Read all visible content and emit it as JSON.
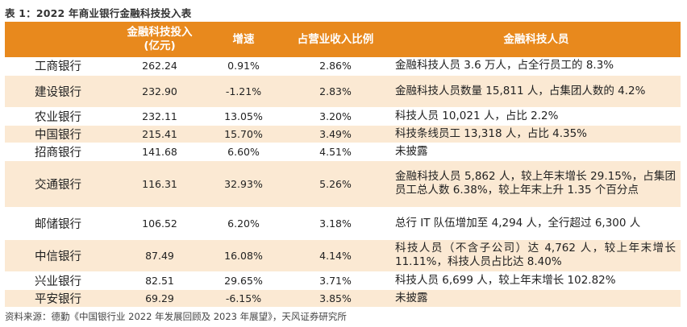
{
  "title": "表 1：2022 年商业银行金融科技投入表",
  "headers": [
    "",
    "金融科技投入\n(亿元)",
    "增速",
    "占营业收入比例",
    "金融科技人员"
  ],
  "rows": [
    {
      "bank": "工商银行",
      "investment": "262.24",
      "growth": "0.91%",
      "ratio": "2.86%",
      "staff": "金融科技人员 3.6 万人，占全行员工的 8.3%"
    },
    {
      "bank": "建设银行",
      "investment": "232.90",
      "growth": "-1.21%",
      "ratio": "2.83%",
      "staff": "金融科技人员数量 15,811 人，占集团人数的 4.2%"
    },
    {
      "bank": "农业银行",
      "investment": "232.11",
      "growth": "13.05%",
      "ratio": "3.20%",
      "staff": "科技人员 10,021 人，占比 2.2%"
    },
    {
      "bank": "中国银行",
      "investment": "215.41",
      "growth": "15.70%",
      "ratio": "3.49%",
      "staff": "科技条线员工 13,318 人，占比 4.35%"
    },
    {
      "bank": "招商银行",
      "investment": "141.68",
      "growth": "6.60%",
      "ratio": "4.51%",
      "staff": "未披露"
    },
    {
      "bank": "交通银行",
      "investment": "116.31",
      "growth": "32.93%",
      "ratio": "5.26%",
      "staff": "金融科技人员 5,862 人，较上年末增长 29.15%，占集团员工总人数 6.38%，较上年末上升 1.35 个百分点"
    },
    {
      "bank": "邮储银行",
      "investment": "106.52",
      "growth": "6.20%",
      "ratio": "3.18%",
      "staff": "总行 IT 队伍增加至 4,294 人，全行超过 6,300 人"
    },
    {
      "bank": "中信银行",
      "investment": "87.49",
      "growth": "16.08%",
      "ratio": "4.14%",
      "staff": "科技人员（不含子公司）达 4,762 人，较上年末增长 11.11%，科技人员占比达 8.40%"
    },
    {
      "bank": "兴业银行",
      "investment": "82.51",
      "growth": "29.65%",
      "ratio": "3.71%",
      "staff": "科技人员 6,699 人，较上年末增长 102.82%"
    },
    {
      "bank": "平安银行",
      "investment": "69.29",
      "growth": "-6.15%",
      "ratio": "3.85%",
      "staff": "未披露"
    }
  ],
  "source": "资料来源：德勤《中国银行业 2022 年发展回顾及 2023 年展望》，天风证券研究所"
}
